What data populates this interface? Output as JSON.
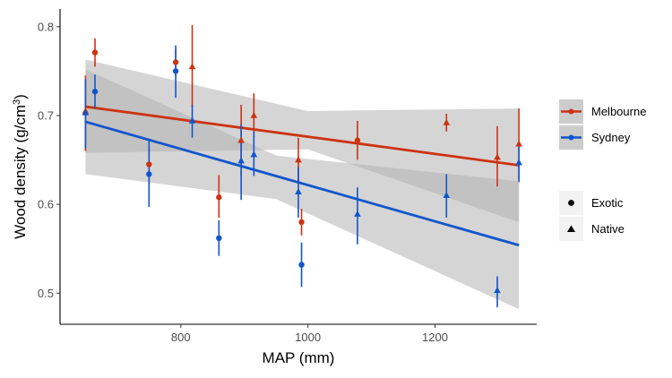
{
  "chart_data": {
    "type": "scatter",
    "title": "",
    "xlabel": "MAP (mm)",
    "ylabel": "Wood density (g/cm",
    "ylabel_superscript": "3",
    "ylabel_suffix": ")",
    "xlim": [
      610,
      1360
    ],
    "ylim": [
      0.465,
      0.82
    ],
    "xticks": [
      800,
      1000,
      1200
    ],
    "xtick_labels": [
      "800",
      "1000",
      "1200"
    ],
    "yticks": [
      0.5,
      0.6,
      0.7,
      0.8
    ],
    "ytick_labels": [
      "0.5",
      "0.6",
      "0.7",
      "0.8"
    ],
    "colors": {
      "Melbourne": "#cc3311",
      "Sydney": "#1155cc",
      "band": "#b3b3b3"
    },
    "legend_city": {
      "items": [
        "Melbourne",
        "Sydney"
      ],
      "position": "right"
    },
    "legend_origin": {
      "items": [
        "Exotic",
        "Native"
      ],
      "position": "right"
    },
    "series": [
      {
        "name": "Melbourne",
        "points": [
          {
            "x": 650,
            "y": 0.705,
            "lo": 0.66,
            "hi": 0.745,
            "origin": "Native"
          },
          {
            "x": 665,
            "y": 0.771,
            "lo": 0.755,
            "hi": 0.787,
            "origin": "Exotic"
          },
          {
            "x": 750,
            "y": 0.645,
            "lo": 0.625,
            "hi": 0.665,
            "origin": "Exotic"
          },
          {
            "x": 792,
            "y": 0.76,
            "lo": 0.745,
            "hi": 0.775,
            "origin": "Exotic"
          },
          {
            "x": 818,
            "y": 0.755,
            "lo": 0.71,
            "hi": 0.802,
            "origin": "Native"
          },
          {
            "x": 860,
            "y": 0.608,
            "lo": 0.585,
            "hi": 0.633,
            "origin": "Exotic"
          },
          {
            "x": 895,
            "y": 0.672,
            "lo": 0.632,
            "hi": 0.712,
            "origin": "Native"
          },
          {
            "x": 915,
            "y": 0.7,
            "lo": 0.675,
            "hi": 0.725,
            "origin": "Native"
          },
          {
            "x": 985,
            "y": 0.65,
            "lo": 0.625,
            "hi": 0.675,
            "origin": "Native"
          },
          {
            "x": 990,
            "y": 0.58,
            "lo": 0.565,
            "hi": 0.595,
            "origin": "Exotic"
          },
          {
            "x": 1078,
            "y": 0.672,
            "lo": 0.65,
            "hi": 0.694,
            "origin": "Exotic"
          },
          {
            "x": 1218,
            "y": 0.692,
            "lo": 0.682,
            "hi": 0.702,
            "origin": "Native"
          },
          {
            "x": 1298,
            "y": 0.653,
            "lo": 0.62,
            "hi": 0.688,
            "origin": "Native"
          },
          {
            "x": 1332,
            "y": 0.668,
            "lo": 0.628,
            "hi": 0.708,
            "origin": "Native"
          }
        ],
        "fit": {
          "x": [
            650,
            1332
          ],
          "y": [
            0.71,
            0.644
          ]
        },
        "band": {
          "x": [
            650,
            1000,
            1332
          ],
          "lower": [
            0.658,
            0.662,
            0.58
          ],
          "upper": [
            0.763,
            0.705,
            0.708
          ]
        }
      },
      {
        "name": "Sydney",
        "points": [
          {
            "x": 650,
            "y": 0.703,
            "lo": 0.663,
            "hi": 0.741,
            "origin": "Native"
          },
          {
            "x": 665,
            "y": 0.727,
            "lo": 0.708,
            "hi": 0.746,
            "origin": "Exotic"
          },
          {
            "x": 750,
            "y": 0.634,
            "lo": 0.597,
            "hi": 0.672,
            "origin": "Exotic"
          },
          {
            "x": 792,
            "y": 0.75,
            "lo": 0.72,
            "hi": 0.779,
            "origin": "Exotic"
          },
          {
            "x": 818,
            "y": 0.694,
            "lo": 0.675,
            "hi": 0.712,
            "origin": "Native"
          },
          {
            "x": 860,
            "y": 0.562,
            "lo": 0.542,
            "hi": 0.582,
            "origin": "Exotic"
          },
          {
            "x": 895,
            "y": 0.649,
            "lo": 0.605,
            "hi": 0.69,
            "origin": "Native"
          },
          {
            "x": 915,
            "y": 0.656,
            "lo": 0.632,
            "hi": 0.682,
            "origin": "Native"
          },
          {
            "x": 985,
            "y": 0.614,
            "lo": 0.585,
            "hi": 0.642,
            "origin": "Native"
          },
          {
            "x": 990,
            "y": 0.532,
            "lo": 0.507,
            "hi": 0.557,
            "origin": "Exotic"
          },
          {
            "x": 1078,
            "y": 0.589,
            "lo": 0.555,
            "hi": 0.619,
            "origin": "Native"
          },
          {
            "x": 1218,
            "y": 0.61,
            "lo": 0.585,
            "hi": 0.634,
            "origin": "Native"
          },
          {
            "x": 1298,
            "y": 0.503,
            "lo": 0.484,
            "hi": 0.519,
            "origin": "Native"
          },
          {
            "x": 1332,
            "y": 0.647,
            "lo": 0.625,
            "hi": 0.668,
            "origin": "Native"
          }
        ],
        "fit": {
          "x": [
            650,
            1332
          ],
          "y": [
            0.693,
            0.554
          ]
        },
        "band": {
          "x": [
            650,
            950,
            1332
          ],
          "lower": [
            0.634,
            0.606,
            0.482
          ],
          "upper": [
            0.752,
            0.655,
            0.626
          ]
        }
      }
    ]
  }
}
